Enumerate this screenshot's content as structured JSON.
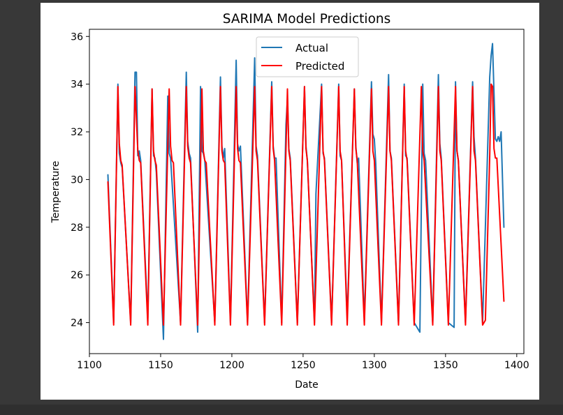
{
  "colors": {
    "background": "#383838",
    "panel": "#ffffff",
    "actual": "#1f77b4",
    "predicted": "#ff0000"
  },
  "chart_data": {
    "type": "line",
    "title": "SARIMA Model Predictions",
    "xlabel": "Date",
    "ylabel": "Temperature",
    "xlim": [
      1100,
      1405
    ],
    "ylim": [
      22.7,
      36.3
    ],
    "xticks": [
      1100,
      1150,
      1200,
      1250,
      1300,
      1350,
      1400
    ],
    "yticks": [
      24,
      26,
      28,
      30,
      32,
      34,
      36
    ],
    "legend": {
      "placement": "top-center",
      "entries": [
        "Actual",
        "Predicted"
      ]
    },
    "grid": false,
    "series": [
      {
        "name": "Actual",
        "color": "#1f77b4",
        "points": [
          [
            1113,
            30.2
          ],
          [
            1117,
            24.0
          ],
          [
            1120,
            34.0
          ],
          [
            1121,
            31.1
          ],
          [
            1122,
            30.7
          ],
          [
            1123,
            30.5
          ],
          [
            1129,
            24.0
          ],
          [
            1132,
            34.5
          ],
          [
            1133,
            34.5
          ],
          [
            1134,
            31.0
          ],
          [
            1135,
            31.2
          ],
          [
            1136,
            30.8
          ],
          [
            1141,
            24.2
          ],
          [
            1144,
            33.8
          ],
          [
            1145,
            31.0
          ],
          [
            1146,
            30.9
          ],
          [
            1147,
            30.3
          ],
          [
            1152,
            23.3
          ],
          [
            1155,
            33.5
          ],
          [
            1156,
            31.1
          ],
          [
            1157,
            30.9
          ],
          [
            1164,
            24.0
          ],
          [
            1168,
            34.5
          ],
          [
            1169,
            31.6
          ],
          [
            1170,
            31.1
          ],
          [
            1171,
            30.9
          ],
          [
            1176,
            23.6
          ],
          [
            1178,
            33.9
          ],
          [
            1179,
            31.2
          ],
          [
            1180,
            31.1
          ],
          [
            1181,
            30.8
          ],
          [
            1188,
            24.0
          ],
          [
            1192,
            34.3
          ],
          [
            1193,
            31.4
          ],
          [
            1194,
            30.9
          ],
          [
            1195,
            31.3
          ],
          [
            1199,
            24.0
          ],
          [
            1203,
            35.0
          ],
          [
            1204,
            31.5
          ],
          [
            1205,
            31.2
          ],
          [
            1206,
            31.4
          ],
          [
            1211,
            24.0
          ],
          [
            1216,
            35.1
          ],
          [
            1217,
            31.4
          ],
          [
            1218,
            31.0
          ],
          [
            1223,
            24.0
          ],
          [
            1228,
            34.1
          ],
          [
            1229,
            31.4
          ],
          [
            1230,
            30.9
          ],
          [
            1231,
            30.9
          ],
          [
            1235,
            24.0
          ],
          [
            1238,
            32.3
          ],
          [
            1239,
            33.4
          ],
          [
            1240,
            31.3
          ],
          [
            1241,
            30.9
          ],
          [
            1246,
            24.0
          ],
          [
            1251,
            33.9
          ],
          [
            1252,
            31.4
          ],
          [
            1253,
            30.8
          ],
          [
            1258,
            24.0
          ],
          [
            1259,
            29.4
          ],
          [
            1263,
            34.0
          ],
          [
            1264,
            31.1
          ],
          [
            1265,
            30.9
          ],
          [
            1270,
            24.0
          ],
          [
            1275,
            34.0
          ],
          [
            1276,
            31.0
          ],
          [
            1277,
            30.8
          ],
          [
            1281,
            24.2
          ],
          [
            1286,
            33.8
          ],
          [
            1287,
            31.4
          ],
          [
            1288,
            30.7
          ],
          [
            1289,
            30.9
          ],
          [
            1293,
            24.1
          ],
          [
            1298,
            34.1
          ],
          [
            1299,
            31.9
          ],
          [
            1300,
            31.7
          ],
          [
            1301,
            30.7
          ],
          [
            1305,
            24.0
          ],
          [
            1310,
            34.4
          ],
          [
            1311,
            31.2
          ],
          [
            1312,
            30.9
          ],
          [
            1317,
            24.0
          ],
          [
            1321,
            34.0
          ],
          [
            1322,
            31.0
          ],
          [
            1323,
            30.9
          ],
          [
            1328,
            24.0
          ],
          [
            1332,
            23.6
          ],
          [
            1334,
            34.0
          ],
          [
            1335,
            31.1
          ],
          [
            1336,
            30.8
          ],
          [
            1341,
            24.0
          ],
          [
            1345,
            34.4
          ],
          [
            1346,
            31.5
          ],
          [
            1347,
            30.9
          ],
          [
            1352,
            24.0
          ],
          [
            1356,
            23.8
          ],
          [
            1357,
            34.1
          ],
          [
            1358,
            31.2
          ],
          [
            1359,
            30.8
          ],
          [
            1364,
            24.0
          ],
          [
            1369,
            34.1
          ],
          [
            1370,
            31.8
          ],
          [
            1371,
            30.9
          ],
          [
            1376,
            24.0
          ],
          [
            1381,
            34.3
          ],
          [
            1382,
            35.2
          ],
          [
            1383,
            35.7
          ],
          [
            1385,
            31.7
          ],
          [
            1386,
            31.6
          ],
          [
            1387,
            31.8
          ],
          [
            1388,
            31.6
          ],
          [
            1389,
            32.0
          ],
          [
            1391,
            28.0
          ]
        ]
      },
      {
        "name": "Predicted",
        "color": "#ff0000",
        "points": [
          [
            1113,
            29.9
          ],
          [
            1117,
            23.9
          ],
          [
            1120,
            33.9
          ],
          [
            1121,
            31.5
          ],
          [
            1122,
            30.8
          ],
          [
            1123,
            30.6
          ],
          [
            1129,
            23.9
          ],
          [
            1132,
            33.9
          ],
          [
            1134,
            31.2
          ],
          [
            1135,
            30.8
          ],
          [
            1136,
            30.7
          ],
          [
            1141,
            23.9
          ],
          [
            1144,
            33.8
          ],
          [
            1145,
            31.2
          ],
          [
            1146,
            30.8
          ],
          [
            1147,
            30.6
          ],
          [
            1152,
            23.9
          ],
          [
            1156,
            33.8
          ],
          [
            1157,
            31.4
          ],
          [
            1158,
            30.8
          ],
          [
            1159,
            30.7
          ],
          [
            1164,
            23.9
          ],
          [
            1168,
            33.9
          ],
          [
            1169,
            31.4
          ],
          [
            1170,
            30.9
          ],
          [
            1171,
            30.7
          ],
          [
            1176,
            23.9
          ],
          [
            1179,
            33.8
          ],
          [
            1180,
            31.2
          ],
          [
            1181,
            30.8
          ],
          [
            1182,
            30.7
          ],
          [
            1188,
            23.9
          ],
          [
            1192,
            33.9
          ],
          [
            1193,
            31.2
          ],
          [
            1194,
            30.8
          ],
          [
            1195,
            30.7
          ],
          [
            1199,
            23.9
          ],
          [
            1203,
            33.9
          ],
          [
            1204,
            31.3
          ],
          [
            1205,
            30.8
          ],
          [
            1206,
            30.7
          ],
          [
            1211,
            23.9
          ],
          [
            1216,
            33.9
          ],
          [
            1217,
            31.2
          ],
          [
            1218,
            30.8
          ],
          [
            1223,
            23.9
          ],
          [
            1228,
            33.9
          ],
          [
            1229,
            31.3
          ],
          [
            1230,
            30.8
          ],
          [
            1235,
            23.9
          ],
          [
            1239,
            33.8
          ],
          [
            1240,
            31.2
          ],
          [
            1241,
            30.8
          ],
          [
            1246,
            23.9
          ],
          [
            1251,
            33.9
          ],
          [
            1252,
            31.3
          ],
          [
            1253,
            30.8
          ],
          [
            1258,
            23.9
          ],
          [
            1263,
            33.9
          ],
          [
            1264,
            31.2
          ],
          [
            1265,
            30.8
          ],
          [
            1270,
            23.9
          ],
          [
            1275,
            33.9
          ],
          [
            1276,
            31.2
          ],
          [
            1277,
            30.8
          ],
          [
            1281,
            23.9
          ],
          [
            1286,
            33.8
          ],
          [
            1287,
            31.3
          ],
          [
            1288,
            30.8
          ],
          [
            1293,
            23.9
          ],
          [
            1298,
            33.8
          ],
          [
            1299,
            31.2
          ],
          [
            1300,
            30.8
          ],
          [
            1305,
            23.9
          ],
          [
            1310,
            33.9
          ],
          [
            1311,
            31.2
          ],
          [
            1312,
            30.8
          ],
          [
            1317,
            23.9
          ],
          [
            1321,
            33.9
          ],
          [
            1322,
            31.2
          ],
          [
            1323,
            30.8
          ],
          [
            1328,
            23.9
          ],
          [
            1333,
            33.9
          ],
          [
            1334,
            31.2
          ],
          [
            1335,
            30.8
          ],
          [
            1341,
            23.9
          ],
          [
            1345,
            33.9
          ],
          [
            1346,
            31.2
          ],
          [
            1347,
            30.8
          ],
          [
            1352,
            23.9
          ],
          [
            1357,
            33.9
          ],
          [
            1358,
            31.2
          ],
          [
            1359,
            30.8
          ],
          [
            1364,
            23.9
          ],
          [
            1369,
            33.9
          ],
          [
            1370,
            31.2
          ],
          [
            1371,
            30.8
          ],
          [
            1376,
            23.9
          ],
          [
            1378,
            24.1
          ],
          [
            1381,
            31.0
          ],
          [
            1382,
            34.0
          ],
          [
            1383,
            33.9
          ],
          [
            1384,
            31.3
          ],
          [
            1385,
            30.9
          ],
          [
            1386,
            30.9
          ],
          [
            1391,
            24.9
          ]
        ]
      }
    ]
  }
}
